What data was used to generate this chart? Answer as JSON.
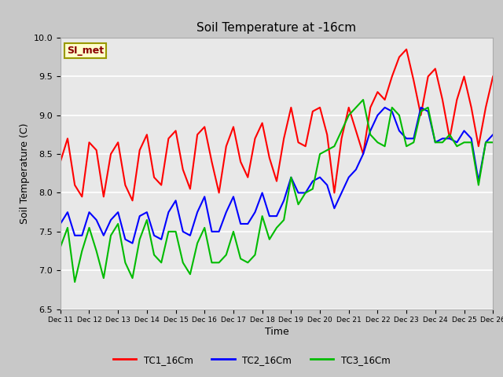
{
  "title": "Soil Temperature at -16cm",
  "xlabel": "Time",
  "ylabel": "Soil Temperature (C)",
  "ylim": [
    6.5,
    10.0
  ],
  "annotation_text": "SI_met",
  "annotation_color": "#8b0000",
  "annotation_bg": "#ffffcc",
  "annotation_border": "#999900",
  "x_tick_labels": [
    "Dec 11",
    "Dec 12",
    "Dec 13",
    "Dec 14",
    "Dec 15",
    "Dec 16",
    "Dec 17",
    "Dec 18",
    "Dec 19",
    "Dec 20",
    "Dec 21",
    "Dec 22",
    "Dec 23",
    "Dec 24",
    "Dec 25",
    "Dec 26"
  ],
  "legend_labels": [
    "TC1_16Cm",
    "TC2_16Cm",
    "TC3_16Cm"
  ],
  "line_colors": [
    "#ff0000",
    "#0000ff",
    "#00bb00"
  ],
  "line_width": 1.5,
  "TC1_x": [
    0,
    0.25,
    0.5,
    0.75,
    1.0,
    1.25,
    1.5,
    1.75,
    2.0,
    2.25,
    2.5,
    2.75,
    3.0,
    3.25,
    3.5,
    3.75,
    4.0,
    4.25,
    4.5,
    4.75,
    5.0,
    5.25,
    5.5,
    5.75,
    6.0,
    6.25,
    6.5,
    6.75,
    7.0,
    7.25,
    7.5,
    7.75,
    8.0,
    8.25,
    8.5,
    8.75,
    9.0,
    9.25,
    9.5,
    9.75,
    10.0,
    10.25,
    10.5,
    10.75,
    11.0,
    11.25,
    11.5,
    11.75,
    12.0,
    12.25,
    12.5,
    12.75,
    13.0,
    13.25,
    13.5,
    13.75,
    14.0,
    14.25,
    14.5,
    14.75,
    15.0
  ],
  "TC1_y": [
    8.4,
    8.7,
    8.1,
    7.95,
    8.65,
    8.55,
    7.95,
    8.5,
    8.65,
    8.1,
    7.9,
    8.55,
    8.75,
    8.2,
    8.1,
    8.7,
    8.8,
    8.3,
    8.05,
    8.75,
    8.85,
    8.4,
    8.0,
    8.6,
    8.85,
    8.4,
    8.2,
    8.7,
    8.9,
    8.45,
    8.15,
    8.7,
    9.1,
    8.65,
    8.6,
    9.05,
    9.1,
    8.75,
    8.0,
    8.7,
    9.1,
    8.8,
    8.5,
    9.1,
    9.3,
    9.2,
    9.5,
    9.75,
    9.85,
    9.45,
    9.0,
    9.5,
    9.6,
    9.2,
    8.7,
    9.2,
    9.5,
    9.1,
    8.6,
    9.1,
    9.5
  ],
  "TC2_x": [
    0,
    0.25,
    0.5,
    0.75,
    1.0,
    1.25,
    1.5,
    1.75,
    2.0,
    2.25,
    2.5,
    2.75,
    3.0,
    3.25,
    3.5,
    3.75,
    4.0,
    4.25,
    4.5,
    4.75,
    5.0,
    5.25,
    5.5,
    5.75,
    6.0,
    6.25,
    6.5,
    6.75,
    7.0,
    7.25,
    7.5,
    7.75,
    8.0,
    8.25,
    8.5,
    8.75,
    9.0,
    9.25,
    9.5,
    9.75,
    10.0,
    10.25,
    10.5,
    10.75,
    11.0,
    11.25,
    11.5,
    11.75,
    12.0,
    12.25,
    12.5,
    12.75,
    13.0,
    13.25,
    13.5,
    13.75,
    14.0,
    14.25,
    14.5,
    14.75,
    15.0
  ],
  "TC2_y": [
    7.6,
    7.75,
    7.45,
    7.45,
    7.75,
    7.65,
    7.45,
    7.65,
    7.75,
    7.4,
    7.35,
    7.7,
    7.75,
    7.45,
    7.4,
    7.75,
    7.9,
    7.5,
    7.45,
    7.75,
    7.95,
    7.5,
    7.5,
    7.75,
    7.95,
    7.6,
    7.6,
    7.75,
    8.0,
    7.7,
    7.7,
    7.9,
    8.2,
    8.0,
    8.0,
    8.15,
    8.2,
    8.1,
    7.8,
    8.0,
    8.2,
    8.3,
    8.5,
    8.8,
    9.0,
    9.1,
    9.05,
    8.8,
    8.7,
    8.7,
    9.1,
    9.05,
    8.65,
    8.7,
    8.7,
    8.65,
    8.8,
    8.7,
    8.15,
    8.65,
    8.75
  ],
  "TC3_x": [
    0,
    0.25,
    0.5,
    0.75,
    1.0,
    1.25,
    1.5,
    1.75,
    2.0,
    2.25,
    2.5,
    2.75,
    3.0,
    3.25,
    3.5,
    3.75,
    4.0,
    4.25,
    4.5,
    4.75,
    5.0,
    5.25,
    5.5,
    5.75,
    6.0,
    6.25,
    6.5,
    6.75,
    7.0,
    7.25,
    7.5,
    7.75,
    8.0,
    8.25,
    8.5,
    8.75,
    9.0,
    9.25,
    9.5,
    9.75,
    10.0,
    10.25,
    10.5,
    10.75,
    11.0,
    11.25,
    11.5,
    11.75,
    12.0,
    12.25,
    12.5,
    12.75,
    13.0,
    13.25,
    13.5,
    13.75,
    14.0,
    14.25,
    14.5,
    14.75,
    15.0
  ],
  "TC3_y": [
    7.3,
    7.55,
    6.85,
    7.25,
    7.55,
    7.25,
    6.9,
    7.45,
    7.6,
    7.1,
    6.9,
    7.4,
    7.65,
    7.2,
    7.1,
    7.5,
    7.5,
    7.1,
    6.95,
    7.35,
    7.55,
    7.1,
    7.1,
    7.2,
    7.5,
    7.15,
    7.1,
    7.2,
    7.7,
    7.4,
    7.55,
    7.65,
    8.2,
    7.85,
    8.0,
    8.05,
    8.5,
    8.55,
    8.6,
    8.8,
    9.0,
    9.1,
    9.2,
    8.75,
    8.65,
    8.6,
    9.1,
    9.0,
    8.6,
    8.65,
    9.05,
    9.1,
    8.65,
    8.65,
    8.75,
    8.6,
    8.65,
    8.65,
    8.1,
    8.65,
    8.65
  ]
}
